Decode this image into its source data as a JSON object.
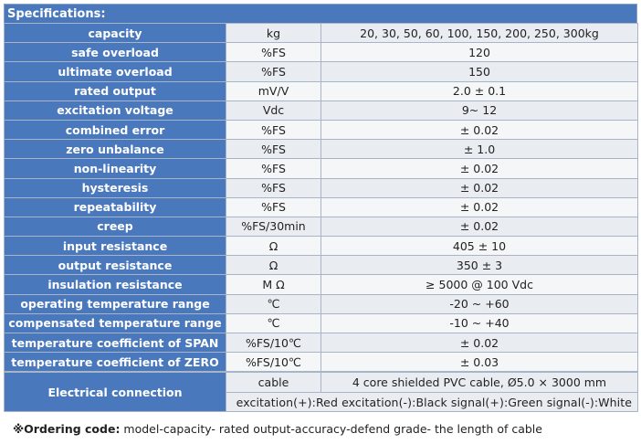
{
  "title": "Specifications:",
  "rows": [
    {
      "param": "capacity",
      "unit": "kg",
      "value": "20, 30, 50, 60, 100, 150, 200, 250, 300kg"
    },
    {
      "param": "safe overload",
      "unit": "%FS",
      "value": "120"
    },
    {
      "param": "ultimate overload",
      "unit": "%FS",
      "value": "150"
    },
    {
      "param": "rated output",
      "unit": "mV/V",
      "value": "2.0 ± 0.1"
    },
    {
      "param": "excitation voltage",
      "unit": "Vdc",
      "value": "9~ 12"
    },
    {
      "param": "combined error",
      "unit": "%FS",
      "value": "± 0.02"
    },
    {
      "param": "zero unbalance",
      "unit": "%FS",
      "value": "± 1.0"
    },
    {
      "param": "non-linearity",
      "unit": "%FS",
      "value": "± 0.02"
    },
    {
      "param": "hysteresis",
      "unit": "%FS",
      "value": "± 0.02"
    },
    {
      "param": "repeatability",
      "unit": "%FS",
      "value": "± 0.02"
    },
    {
      "param": "creep",
      "unit": "%FS/30min",
      "value": "± 0.02"
    },
    {
      "param": "input resistance",
      "unit": "Ω",
      "value": "405 ± 10"
    },
    {
      "param": "output resistance",
      "unit": "Ω",
      "value": "350 ± 3"
    },
    {
      "param": "insulation resistance",
      "unit": "M Ω",
      "value": "≥ 5000 @ 100 Vdc"
    },
    {
      "param": "operating temperature range",
      "unit": "℃",
      "value": "-20 ~ +60"
    },
    {
      "param": "compensated temperature range",
      "unit": "℃",
      "value": "-10 ~ +40"
    },
    {
      "param": "temperature coefficient of SPAN",
      "unit": "%FS/10℃",
      "value": "± 0.02"
    },
    {
      "param": "temperature coefficient of ZERO",
      "unit": "%FS/10℃",
      "value": "± 0.03"
    }
  ],
  "electrical": {
    "param": "Electrical connection",
    "cable_label": "cable",
    "cable_value": "4 core shielded PVC cable, Ø5.0 × 3000 mm",
    "wiring": "excitation(+):Red excitation(-):Black signal(+):Green  signal(-):White"
  },
  "footer": {
    "prefix": "※Ordering code:",
    "text": " model-capacity- rated output-accuracy-defend grade- the length of cable"
  },
  "colors": {
    "header_bg": "#4a78bd",
    "cell_bg": "#e9ecf1",
    "border": "#a9b4c6"
  }
}
